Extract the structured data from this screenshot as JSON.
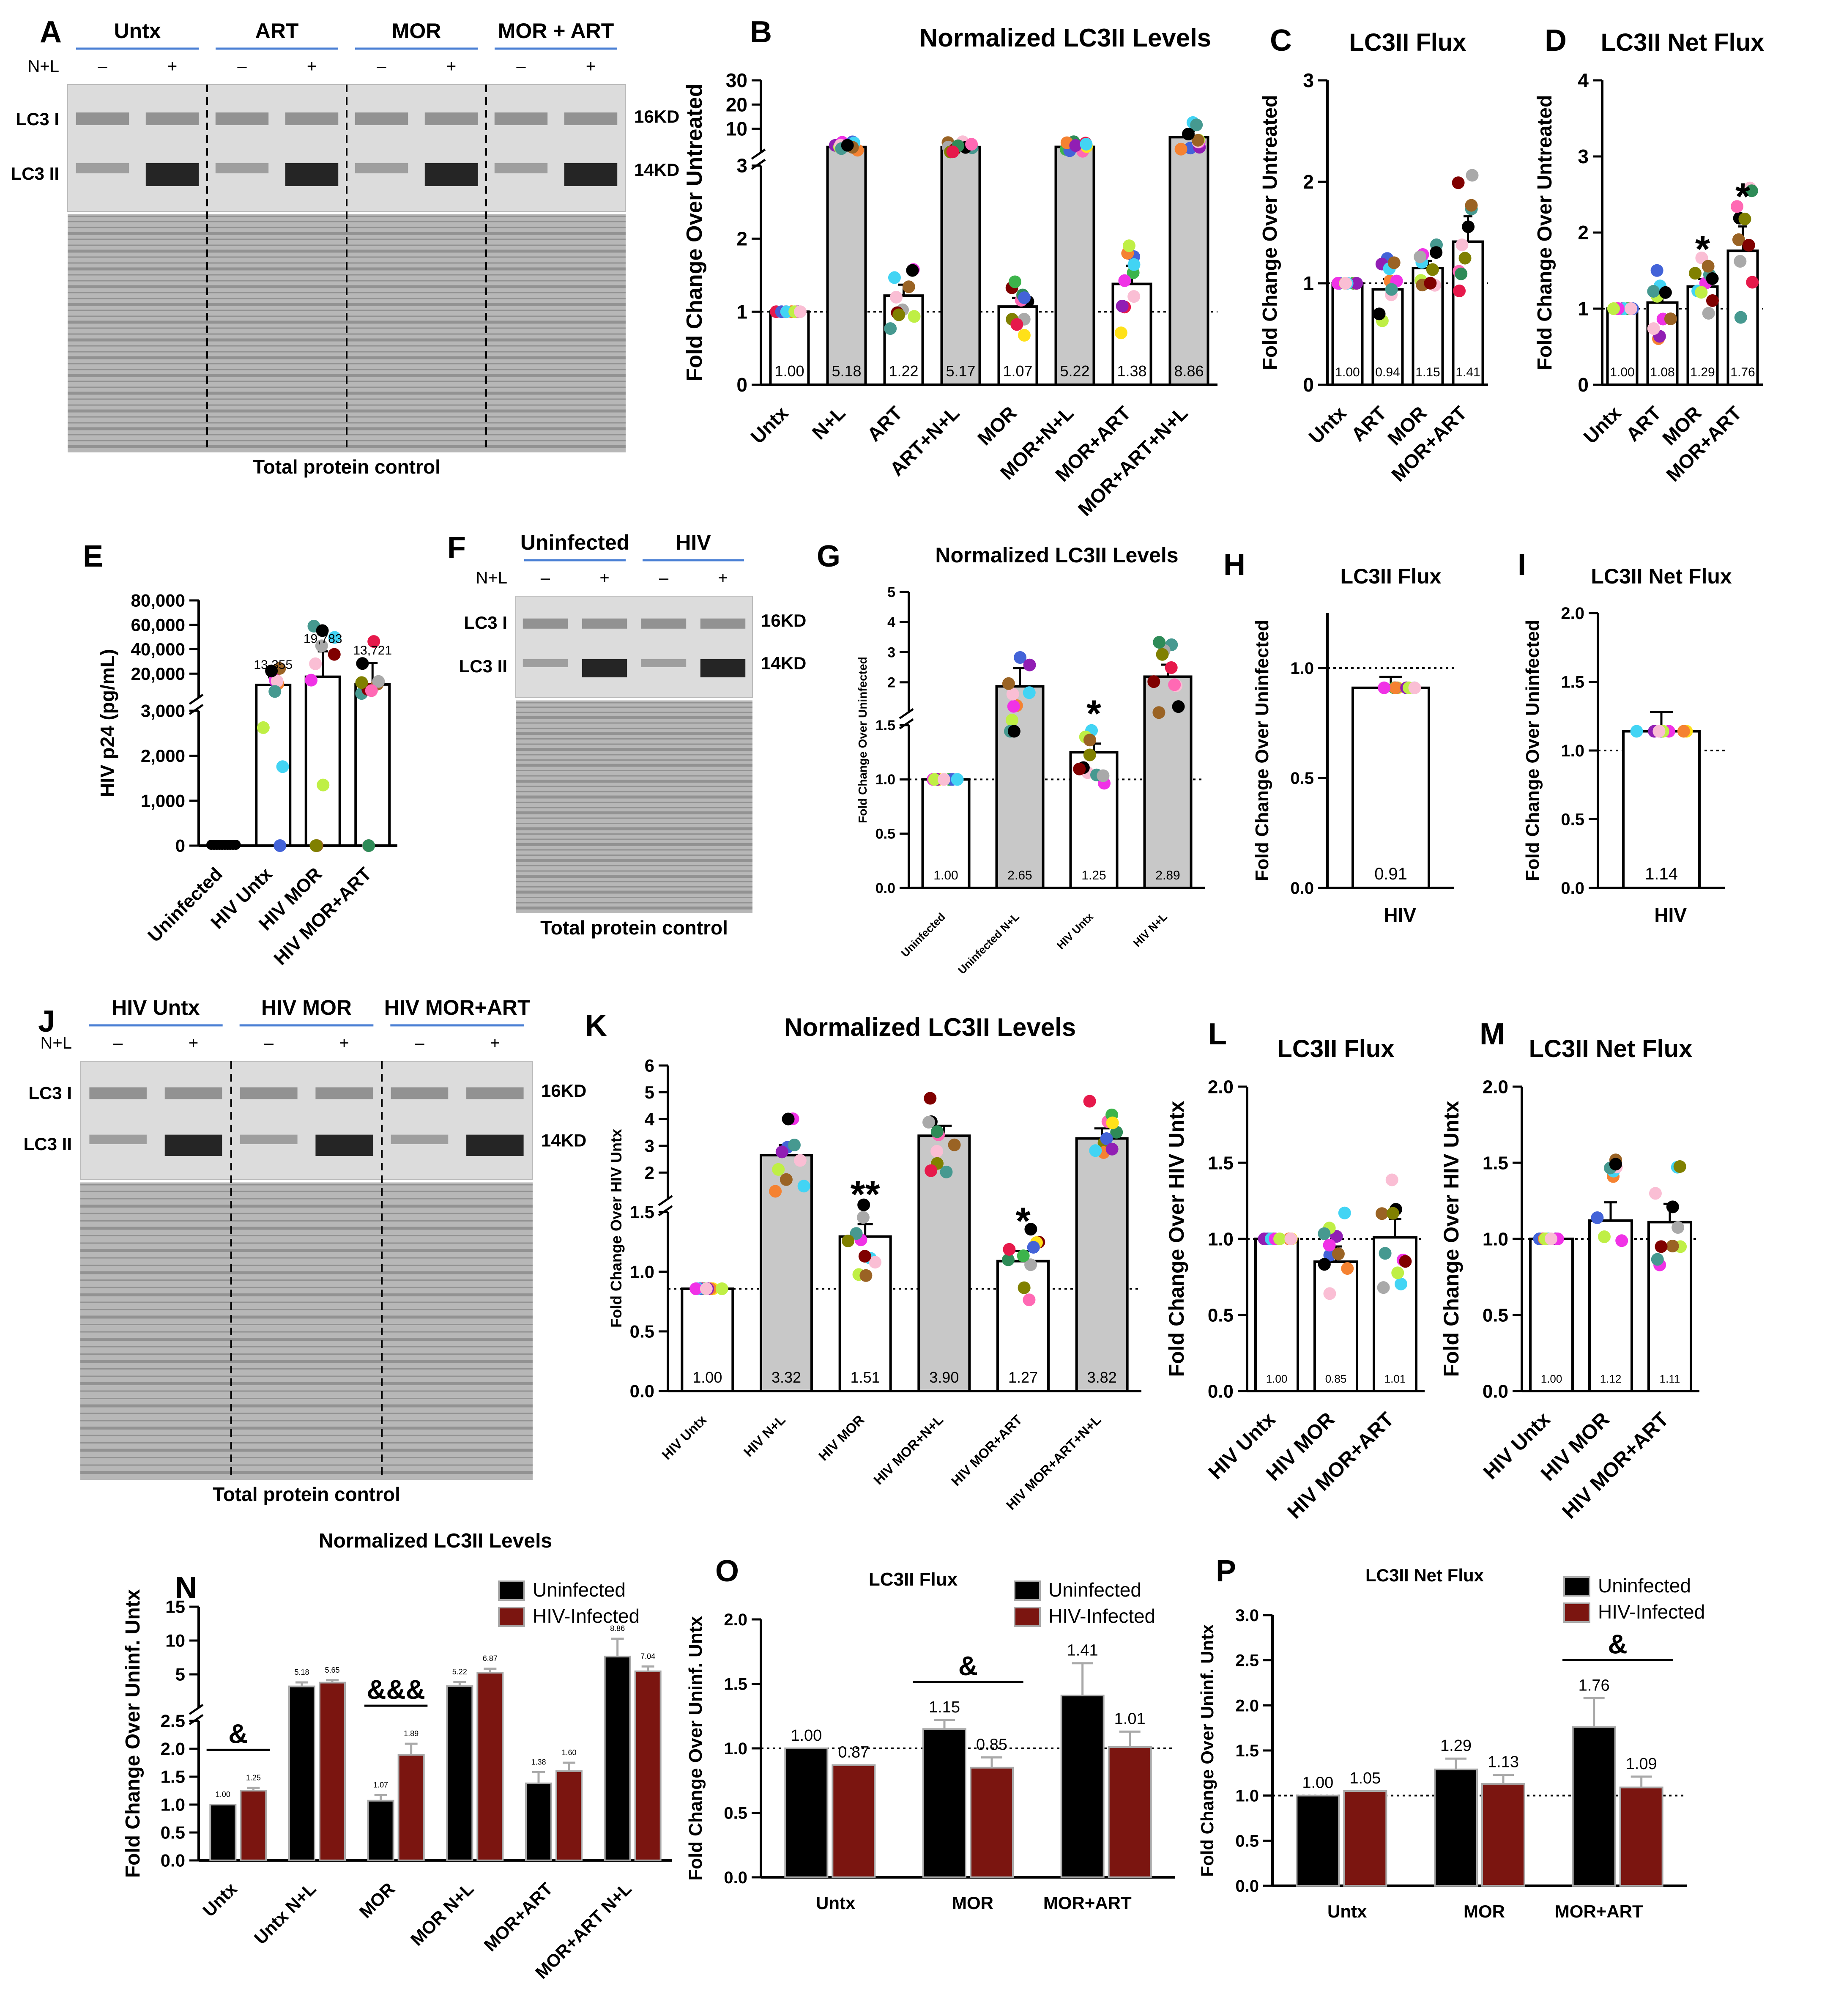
{
  "panel_letters": [
    "A",
    "B",
    "C",
    "D",
    "E",
    "F",
    "G",
    "H",
    "I",
    "J",
    "K",
    "L",
    "M",
    "N",
    "O",
    "P"
  ],
  "blots": {
    "A": {
      "groups": [
        "Untx",
        "ART",
        "MOR",
        "MOR + ART"
      ],
      "treatment_label": "N+L",
      "signs": [
        "–",
        "+",
        "–",
        "+",
        "–",
        "+",
        "–",
        "+"
      ],
      "bands": [
        "LC3 I",
        "LC3 II"
      ],
      "sizes": [
        "16KD",
        "14KD"
      ],
      "footer": "Total protein control"
    },
    "F": {
      "groups": [
        "Uninfected",
        "HIV"
      ],
      "treatment_label": "N+L",
      "signs": [
        "–",
        "+",
        "–",
        "+"
      ],
      "bands": [
        "LC3 I",
        "LC3 II"
      ],
      "sizes": [
        "16KD",
        "14KD"
      ],
      "footer": "Total protein control"
    },
    "J": {
      "groups": [
        "HIV Untx",
        "HIV MOR",
        "HIV MOR+ART"
      ],
      "treatment_label": "N+L",
      "signs": [
        "–",
        "+",
        "–",
        "+",
        "–",
        "+"
      ],
      "bands": [
        "LC3 I",
        "LC3 II"
      ],
      "sizes": [
        "16KD",
        "14KD"
      ],
      "footer": "Total protein control"
    }
  },
  "chart_data": [
    {
      "panel": "B",
      "type": "bar",
      "title": "Normalized LC3II Levels",
      "ylabel": "Fold Change Over Untreated",
      "categories": [
        "Untx",
        "N+L",
        "ART",
        "ART+N+L",
        "MOR",
        "MOR+N+L",
        "MOR+ART",
        "MOR+ART+N+L"
      ],
      "values": [
        1.0,
        5.18,
        1.22,
        5.17,
        1.07,
        5.22,
        1.38,
        8.86
      ],
      "value_labels": [
        "1.00",
        "5.18",
        "1.22",
        "5.17",
        "1.07",
        "5.22",
        "1.38",
        "8.86"
      ],
      "shaded": [
        false,
        true,
        false,
        true,
        false,
        true,
        false,
        true
      ],
      "errors": [
        0,
        0.6,
        0.15,
        0.6,
        0.12,
        0.6,
        0.25,
        2.2
      ],
      "broken_axis": {
        "lower": [
          0,
          3
        ],
        "upper": [
          3,
          30
        ]
      },
      "yticks_lower": [
        "0",
        "1",
        "2",
        "3"
      ],
      "yticks_upper": [
        "10",
        "20",
        "30"
      ],
      "reference_line": 1,
      "significance": [
        "",
        "",
        "",
        "",
        "",
        "",
        "",
        ""
      ]
    },
    {
      "panel": "C",
      "type": "bar",
      "title": "LC3II Flux",
      "ylabel": "Fold Change Over Untreated",
      "categories": [
        "Untx",
        "ART",
        "MOR",
        "MOR+ART"
      ],
      "values": [
        1.0,
        0.94,
        1.15,
        1.41
      ],
      "value_labels": [
        "1.00",
        "0.94",
        "1.15",
        "1.41"
      ],
      "errors": [
        0,
        0.1,
        0.07,
        0.25
      ],
      "ylim": [
        0,
        3
      ],
      "yticks": [
        "0",
        "1",
        "2",
        "3"
      ],
      "reference_line": 1,
      "significance": [
        "",
        "",
        "",
        ""
      ]
    },
    {
      "panel": "D",
      "type": "bar",
      "title": "LC3II Net Flux",
      "ylabel": "Fold Change Over Untreated",
      "categories": [
        "Untx",
        "ART",
        "MOR",
        "MOR+ART"
      ],
      "values": [
        1.0,
        1.08,
        1.29,
        1.76
      ],
      "value_labels": [
        "1.00",
        "1.08",
        "1.29",
        "1.76"
      ],
      "errors": [
        0,
        0.18,
        0.1,
        0.32
      ],
      "ylim": [
        0,
        4
      ],
      "yticks": [
        "0",
        "1",
        "2",
        "3",
        "4"
      ],
      "reference_line": 1,
      "significance": [
        "",
        "",
        "*",
        "*"
      ]
    },
    {
      "panel": "E",
      "type": "bar",
      "title": "",
      "ylabel": "HIV p24 (pg/mL)",
      "categories": [
        "Uninfected",
        "HIV Untx",
        "HIV MOR",
        "HIV MOR+ART"
      ],
      "values": [
        0,
        13355,
        19783,
        13721
      ],
      "value_labels": [
        "",
        "13,355",
        "19,783",
        "13,721"
      ],
      "errors": [
        0,
        6000,
        20000,
        17000
      ],
      "broken_axis": {
        "lower": [
          0,
          3000
        ],
        "upper": [
          3000,
          80000
        ]
      },
      "yticks_lower": [
        "0",
        "1,000",
        "2,000",
        "3,000"
      ],
      "yticks_upper": [
        "20,000",
        "40,000",
        "60,000",
        "80,000"
      ]
    },
    {
      "panel": "G",
      "type": "bar",
      "title": "Normalized LC3II Levels",
      "ylabel": "Fold Change Over Uninfected",
      "categories": [
        "Uninfected",
        "Uninfected N+L",
        "HIV Untx",
        "HIV N+L"
      ],
      "values": [
        1.0,
        2.65,
        1.25,
        2.89
      ],
      "value_labels": [
        "1.00",
        "2.65",
        "1.25",
        "2.89"
      ],
      "shaded": [
        false,
        true,
        false,
        true
      ],
      "errors": [
        0,
        0.45,
        0.08,
        0.3
      ],
      "broken_axis": {
        "lower": [
          0,
          1.5
        ],
        "upper": [
          2,
          5
        ]
      },
      "yticks_lower": [
        "0.0",
        "0.5",
        "1.0",
        "1.5"
      ],
      "yticks_upper": [
        "2",
        "3",
        "4",
        "5"
      ],
      "reference_line": 1,
      "significance": [
        "",
        "",
        "*",
        ""
      ]
    },
    {
      "panel": "H",
      "type": "bar",
      "title": "LC3II Flux",
      "ylabel": "Fold Change Over Uninfected",
      "categories": [
        "HIV"
      ],
      "values": [
        0.91
      ],
      "value_labels": [
        "0.91"
      ],
      "errors": [
        0.05
      ],
      "ylim": [
        0,
        1.25
      ],
      "yticks": [
        "0.0",
        "0.5",
        "1.0"
      ],
      "reference_line": 1
    },
    {
      "panel": "I",
      "type": "bar",
      "title": "LC3II Net Flux",
      "ylabel": "Fold Change Over Uninfected",
      "categories": [
        "HIV"
      ],
      "values": [
        1.14
      ],
      "value_labels": [
        "1.14"
      ],
      "errors": [
        0.14
      ],
      "ylim": [
        0,
        2.0
      ],
      "yticks": [
        "0.0",
        "0.5",
        "1.0",
        "1.5",
        "2.0"
      ],
      "reference_line": 1
    },
    {
      "panel": "K",
      "type": "bar",
      "title": "Normalized LC3II Levels",
      "ylabel": "Fold Change Over HIV Untx",
      "categories": [
        "HIV Untx",
        "HIV N+L",
        "HIV MOR",
        "HIV MOR+N+L",
        "HIV MOR+ART",
        "HIV MOR+ART+N+L"
      ],
      "values": [
        1.0,
        3.32,
        1.51,
        3.9,
        1.27,
        3.82
      ],
      "value_labels": [
        "1.00",
        "3.32",
        "1.51",
        "3.90",
        "1.27",
        "3.82"
      ],
      "shaded": [
        false,
        true,
        false,
        true,
        false,
        true
      ],
      "errors": [
        0,
        0.3,
        0.12,
        0.3,
        0.1,
        0.3
      ],
      "broken_axis": {
        "lower": [
          0,
          1.75
        ],
        "upper": [
          2,
          6
        ]
      },
      "yticks_lower": [
        "0.0",
        "0.5",
        "1.0",
        "1.5"
      ],
      "yticks_upper": [
        "2",
        "3",
        "4",
        "5",
        "6"
      ],
      "reference_line": 1,
      "significance": [
        "",
        "",
        "**",
        "",
        "*",
        ""
      ]
    },
    {
      "panel": "L",
      "type": "bar",
      "title": "LC3II Flux",
      "ylabel": "Fold Change Over HIV Untx",
      "categories": [
        "HIV Untx",
        "HIV MOR",
        "HIV MOR+ART"
      ],
      "values": [
        1.0,
        0.85,
        1.01
      ],
      "value_labels": [
        "1.00",
        "0.85",
        "1.01"
      ],
      "errors": [
        0,
        0.1,
        0.12
      ],
      "ylim": [
        0,
        2.0
      ],
      "yticks": [
        "0.0",
        "0.5",
        "1.0",
        "1.5",
        "2.0"
      ],
      "reference_line": 1
    },
    {
      "panel": "M",
      "type": "bar",
      "title": "LC3II Net Flux",
      "ylabel": "Fold Change Over HIV Untx",
      "categories": [
        "HIV Untx",
        "HIV MOR",
        "HIV MOR+ART"
      ],
      "values": [
        1.0,
        1.12,
        1.11
      ],
      "value_labels": [
        "1.00",
        "1.12",
        "1.11"
      ],
      "errors": [
        0,
        0.12,
        0.12
      ],
      "ylim": [
        0,
        2.0
      ],
      "yticks": [
        "0.0",
        "0.5",
        "1.0",
        "1.5",
        "2.0"
      ],
      "reference_line": 1
    },
    {
      "panel": "N",
      "type": "bar",
      "title": "Normalized LC3II Levels",
      "ylabel": "Fold Change Over Uninf. Untx",
      "categories": [
        "Untx",
        "Untx N+L",
        "MOR",
        "MOR N+L",
        "MOR+ART",
        "MOR+ART N+L"
      ],
      "series": [
        {
          "name": "Uninfected",
          "color": "#000000",
          "values": [
            1.0,
            5.18,
            1.07,
            5.22,
            1.38,
            8.86
          ],
          "labels": [
            "1.00",
            "5.18",
            "1.07",
            "5.22",
            "1.38",
            "8.86"
          ],
          "errors": [
            0,
            0.5,
            0.1,
            0.5,
            0.2,
            2.2
          ]
        },
        {
          "name": "HIV-Infected",
          "color": "#7b1510",
          "values": [
            1.25,
            5.65,
            1.89,
            6.87,
            1.6,
            7.04
          ],
          "labels": [
            "1.25",
            "5.65",
            "1.89",
            "6.87",
            "1.60",
            "7.04"
          ],
          "errors": [
            0.05,
            0.3,
            0.2,
            0.5,
            0.15,
            0.6
          ]
        }
      ],
      "broken_axis": {
        "lower": [
          0,
          2.5
        ],
        "upper": [
          2.5,
          15
        ]
      },
      "yticks_lower": [
        "0.0",
        "0.5",
        "1.0",
        "1.5",
        "2.0",
        "2.5"
      ],
      "yticks_upper": [
        "5",
        "10",
        "15"
      ],
      "significance": [
        {
          "between": [
            0,
            0
          ],
          "label": "&"
        },
        {
          "between": [
            2,
            2
          ],
          "label": "&&&"
        }
      ]
    },
    {
      "panel": "O",
      "type": "bar",
      "title": "LC3II Flux",
      "ylabel": "Fold Change Over Uninf. Untx",
      "categories": [
        "Untx",
        "MOR",
        "MOR+ART"
      ],
      "series": [
        {
          "name": "Uninfected",
          "color": "#000000",
          "values": [
            1.0,
            1.15,
            1.41
          ],
          "labels": [
            "1.00",
            "1.15",
            "1.41"
          ],
          "errors": [
            0,
            0.07,
            0.25
          ]
        },
        {
          "name": "HIV-Infected",
          "color": "#7b1510",
          "values": [
            0.87,
            0.85,
            1.01
          ],
          "labels": [
            "0.87",
            "0.85",
            "1.01"
          ],
          "errors": [
            0,
            0.08,
            0.12
          ]
        }
      ],
      "ylim": [
        0,
        2.0
      ],
      "yticks": [
        "0.0",
        "0.5",
        "1.0",
        "1.5",
        "2.0"
      ],
      "reference_line": 1,
      "significance": [
        {
          "between": [
            1,
            1
          ],
          "label": "&"
        }
      ]
    },
    {
      "panel": "P",
      "type": "bar",
      "title": "LC3II Net Flux",
      "ylabel": "Fold Change Over Uninf. Untx",
      "categories": [
        "Untx",
        "MOR",
        "MOR+ART"
      ],
      "series": [
        {
          "name": "Uninfected",
          "color": "#000000",
          "values": [
            1.0,
            1.29,
            1.76
          ],
          "labels": [
            "1.00",
            "1.29",
            "1.76"
          ],
          "errors": [
            0,
            0.12,
            0.32
          ]
        },
        {
          "name": "HIV-Infected",
          "color": "#7b1510",
          "values": [
            1.05,
            1.13,
            1.09
          ],
          "labels": [
            "1.05",
            "1.13",
            "1.09"
          ],
          "errors": [
            0,
            0.1,
            0.12
          ]
        }
      ],
      "ylim": [
        0,
        3.0
      ],
      "yticks": [
        "0.0",
        "0.5",
        "1.0",
        "1.5",
        "2.0",
        "2.5",
        "3.0"
      ],
      "reference_line": 1,
      "significance": [
        {
          "between": [
            2,
            2
          ],
          "label": "&"
        }
      ]
    }
  ],
  "colors": {
    "bar_outline": "#000000",
    "shaded_fill": "#c8c8c8",
    "reference_line": "#000000",
    "blot_group_line": "#4a7fd4",
    "uninfected": "#000000",
    "hiv_infected": "#7b1510",
    "dot_palette": [
      "#e6194b",
      "#3cb44b",
      "#ffe119",
      "#4363d8",
      "#f58231",
      "#911eb4",
      "#42d4f4",
      "#f032e6",
      "#bfef45",
      "#fabed4",
      "#469990",
      "#9a6324",
      "#000000",
      "#a9a9a9",
      "#800000",
      "#808000",
      "#ff69b4",
      "#2e8b57"
    ]
  }
}
